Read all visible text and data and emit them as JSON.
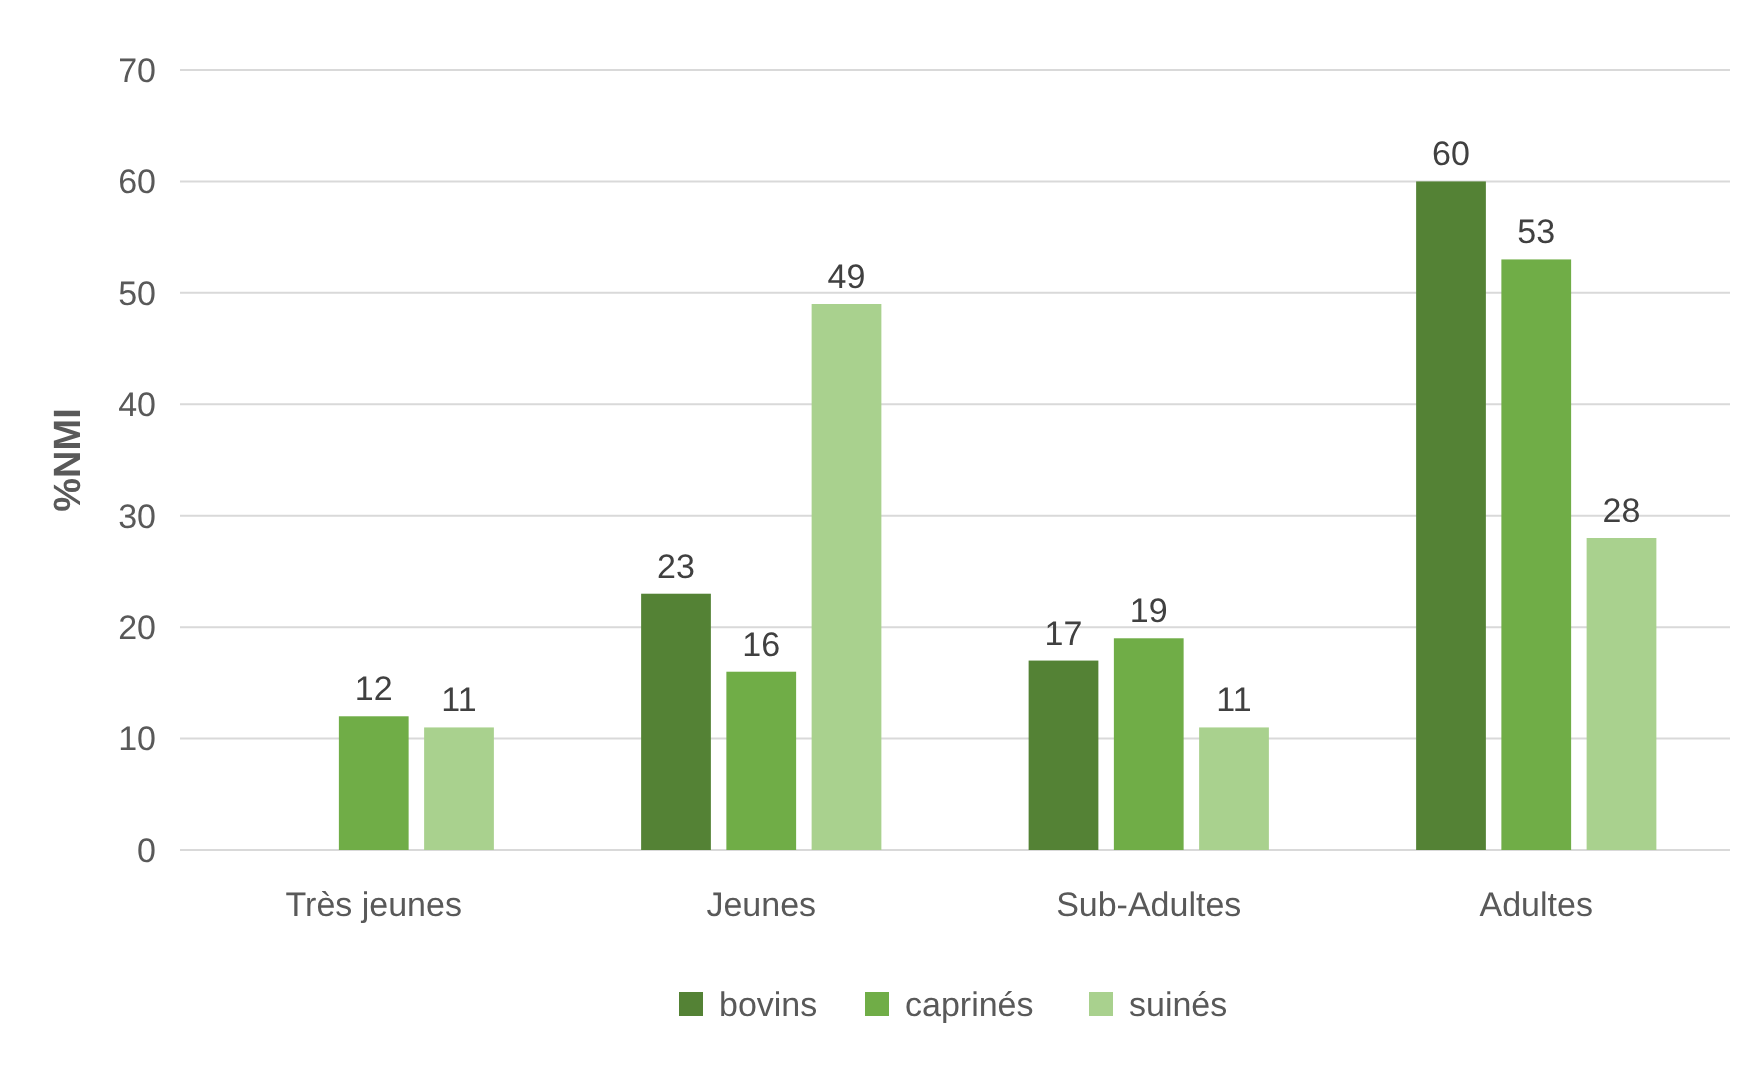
{
  "chart_data": {
    "type": "bar",
    "ylabel": "%NMI",
    "categories": [
      "Très jeunes",
      "Jeunes",
      "Sub-Adultes",
      "Adultes"
    ],
    "series": [
      {
        "name": "bovins",
        "color": "#548235",
        "values": [
          null,
          23,
          17,
          60
        ]
      },
      {
        "name": "caprinés",
        "color": "#70ad47",
        "values": [
          12,
          16,
          19,
          53
        ]
      },
      {
        "name": "suinés",
        "color": "#a9d18e",
        "values": [
          11,
          49,
          11,
          28
        ]
      }
    ],
    "ylim": [
      0,
      70
    ],
    "yticks": [
      0,
      10,
      20,
      30,
      40,
      50,
      60,
      70
    ],
    "grid": "y",
    "legend": "bottom",
    "data_labels": true
  }
}
